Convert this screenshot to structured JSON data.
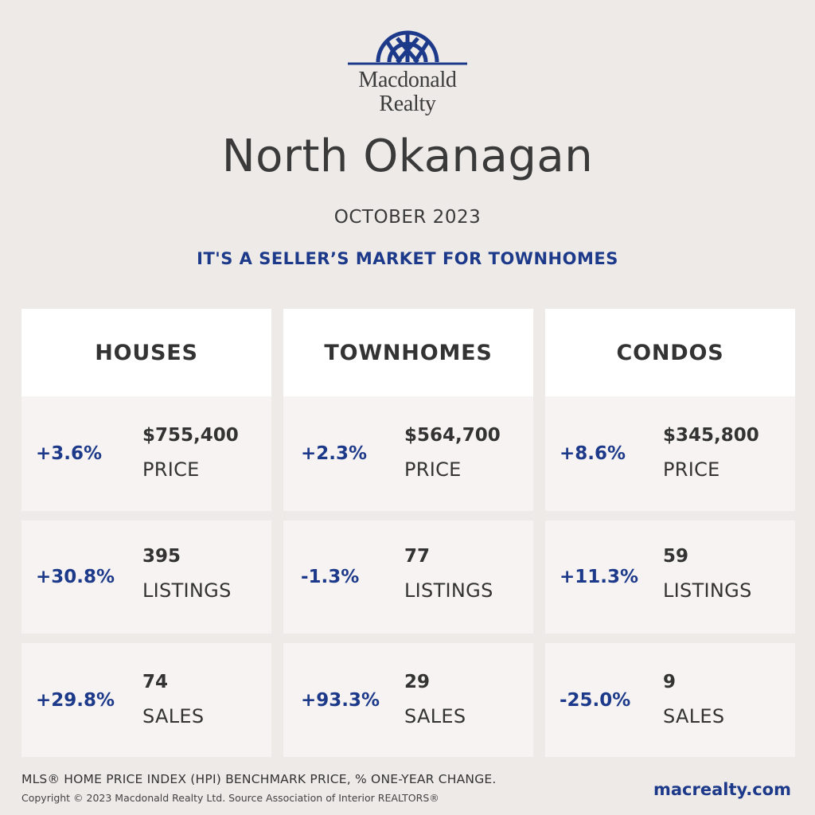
{
  "brand": {
    "name_line1": "Macdonald",
    "name_line2": "Realty",
    "logo_color": "#1d3a8a"
  },
  "title": "North Okanagan",
  "period": "OCTOBER 2023",
  "headline": "IT'S A SELLER’S MARKET FOR TOWNHOMES",
  "columns": [
    {
      "heading": "HOUSES",
      "stats": [
        {
          "change": "+3.6%",
          "value": "$755,400",
          "label": "PRICE"
        },
        {
          "change": "+30.8%",
          "value": "395",
          "label": "LISTINGS"
        },
        {
          "change": "+29.8%",
          "value": "74",
          "label": "SALES"
        }
      ]
    },
    {
      "heading": "TOWNHOMES",
      "stats": [
        {
          "change": "+2.3%",
          "value": "$564,700",
          "label": "PRICE"
        },
        {
          "change": "-1.3%",
          "value": "77",
          "label": "LISTINGS"
        },
        {
          "change": "+93.3%",
          "value": "29",
          "label": "SALES"
        }
      ]
    },
    {
      "heading": "CONDOS",
      "stats": [
        {
          "change": "+8.6%",
          "value": "$345,800",
          "label": "PRICE"
        },
        {
          "change": "+11.3%",
          "value": "59",
          "label": "LISTINGS"
        },
        {
          "change": "-25.0%",
          "value": "9",
          "label": "SALES"
        }
      ]
    }
  ],
  "footer": {
    "note": "MLS® HOME PRICE INDEX (HPI) BENCHMARK PRICE, % ONE-YEAR CHANGE.",
    "copyright": "Copyright © 2023 Macdonald Realty Ltd. Source Association of Interior REALTORS®",
    "website": "macrealty.com"
  },
  "colors": {
    "background": "#edeae8",
    "accent": "#1d3a8a",
    "card": "#f6f3f2",
    "header_card": "#ffffff"
  }
}
